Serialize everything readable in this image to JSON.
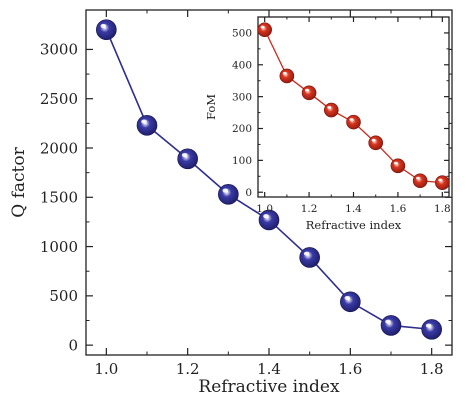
{
  "chart_data": [
    {
      "type": "line",
      "xlabel": "Refractive index",
      "ylabel": "Q factor",
      "x": [
        1.0,
        1.1,
        1.2,
        1.3,
        1.4,
        1.5,
        1.6,
        1.7,
        1.8
      ],
      "series": [
        {
          "values": [
            3200,
            2230,
            1890,
            1530,
            1270,
            890,
            440,
            200,
            160
          ]
        }
      ],
      "xlim": [
        0.95,
        1.85
      ],
      "ylim": [
        -100,
        3400
      ],
      "xticks": [
        "1.0",
        "1.2",
        "1.4",
        "1.6",
        "1.8"
      ],
      "yticks": [
        "0",
        "500",
        "1000",
        "1500",
        "2000",
        "2500",
        "3000"
      ],
      "colors": {
        "marker": "#2e2e8f",
        "line": "#2e2e8f"
      },
      "grid": false
    },
    {
      "type": "line",
      "xlabel": "Refractive index",
      "ylabel": "FoM",
      "x": [
        1.0,
        1.1,
        1.2,
        1.3,
        1.4,
        1.5,
        1.6,
        1.7,
        1.8
      ],
      "series": [
        {
          "values": [
            510,
            365,
            312,
            258,
            220,
            155,
            83,
            36,
            30
          ]
        }
      ],
      "xlim": [
        0.97,
        1.83
      ],
      "ylim": [
        -15,
        550
      ],
      "xticks": [
        "1.0",
        "1.2",
        "1.4",
        "1.6",
        "1.8"
      ],
      "yticks": [
        "0",
        "100",
        "200",
        "300",
        "400",
        "500"
      ],
      "colors": {
        "marker": "#cc2a1e",
        "line": "#cc2a1e"
      },
      "grid": false
    }
  ]
}
